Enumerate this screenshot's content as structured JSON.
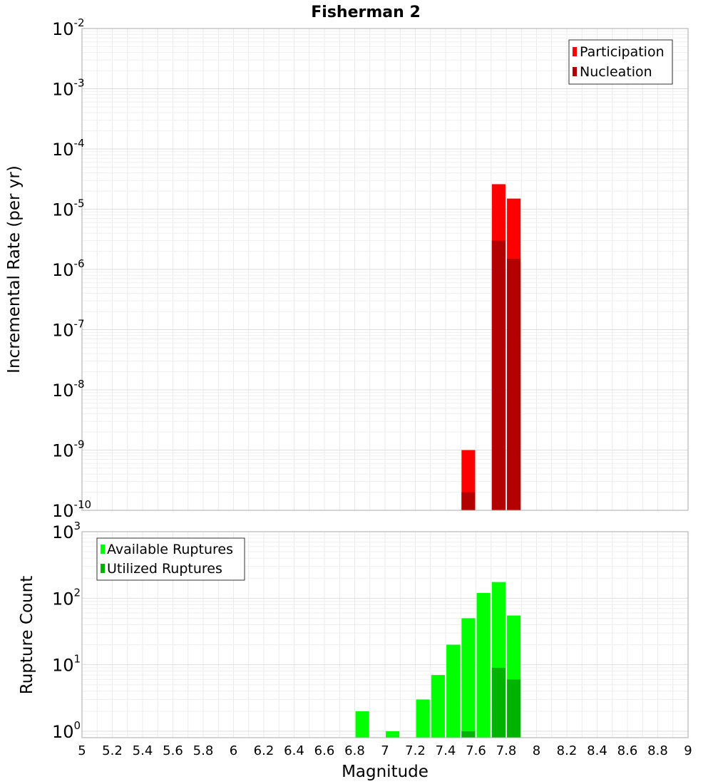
{
  "title": "Fisherman 2",
  "chart_data": [
    {
      "type": "bar",
      "scale": "log",
      "title": "Fisherman 2",
      "xlabel": "",
      "ylabel": "Incremental Rate (per yr)",
      "xlim": [
        5,
        9
      ],
      "ylim": [
        1e-10,
        0.01
      ],
      "grid": true,
      "legend_position": "top-right",
      "bar_width": 0.09,
      "yticks": [
        {
          "base": "10",
          "exp": "-2",
          "value": 0.01
        },
        {
          "base": "10",
          "exp": "-3",
          "value": 0.001
        },
        {
          "base": "10",
          "exp": "-4",
          "value": 0.0001
        },
        {
          "base": "10",
          "exp": "-5",
          "value": 1e-05
        },
        {
          "base": "10",
          "exp": "-6",
          "value": 1e-06
        },
        {
          "base": "10",
          "exp": "-7",
          "value": 1e-07
        },
        {
          "base": "10",
          "exp": "-8",
          "value": 1e-08
        },
        {
          "base": "10",
          "exp": "-9",
          "value": 1e-09
        },
        {
          "base": "10",
          "exp": "-10",
          "value": 1e-10
        }
      ],
      "series": [
        {
          "name": "Participation",
          "color": "#ff0000",
          "x": [
            7.55,
            7.75,
            7.85
          ],
          "values": [
            1e-09,
            2.6e-05,
            1.5e-05
          ]
        },
        {
          "name": "Nucleation",
          "color": "#b30000",
          "x": [
            7.55,
            7.75,
            7.85
          ],
          "values": [
            2e-10,
            3e-06,
            1.5e-06
          ]
        }
      ]
    },
    {
      "type": "bar",
      "scale": "log",
      "title": "",
      "xlabel": "Magnitude",
      "ylabel": "Rupture Count",
      "xlim": [
        5,
        9
      ],
      "ylim": [
        0.8,
        1000
      ],
      "grid": true,
      "legend_position": "top-left",
      "bar_width": 0.09,
      "xticks": [
        "5",
        "5.2",
        "5.4",
        "5.6",
        "5.8",
        "6",
        "6.2",
        "6.4",
        "6.6",
        "6.8",
        "7",
        "7.2",
        "7.4",
        "7.6",
        "7.8",
        "8",
        "8.2",
        "8.4",
        "8.6",
        "8.8",
        "9"
      ],
      "yticks": [
        {
          "base": "10",
          "exp": "3",
          "value": 1000
        },
        {
          "base": "10",
          "exp": "2",
          "value": 100
        },
        {
          "base": "10",
          "exp": "1",
          "value": 10
        },
        {
          "base": "10",
          "exp": "0",
          "value": 1
        }
      ],
      "series": [
        {
          "name": "Available Ruptures",
          "color": "#00ff00",
          "x": [
            6.85,
            7.05,
            7.25,
            7.35,
            7.45,
            7.55,
            7.65,
            7.75,
            7.85
          ],
          "values": [
            2,
            1,
            3,
            7,
            20,
            50,
            120,
            175,
            55
          ]
        },
        {
          "name": "Utilized Ruptures",
          "color": "#00b300",
          "x": [
            7.55,
            7.75,
            7.85
          ],
          "values": [
            1,
            9,
            6
          ]
        }
      ]
    }
  ]
}
